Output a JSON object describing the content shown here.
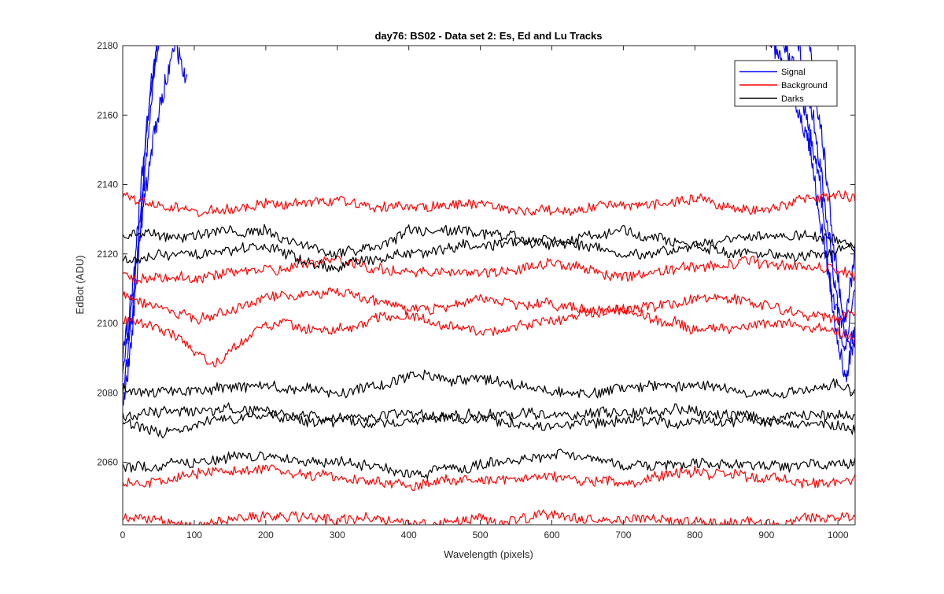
{
  "chart_data": {
    "type": "line",
    "title": "day76: BS02 - Data set 2: Es, Ed and Lu Tracks",
    "xlabel": "Wavelength (pixels)",
    "ylabel": "EdBot (ADU)",
    "xlim": [
      0,
      1024
    ],
    "ylim": [
      2042,
      2180
    ],
    "xticks": [
      0,
      100,
      200,
      300,
      400,
      500,
      600,
      700,
      800,
      900,
      1000
    ],
    "yticks": [
      2060,
      2080,
      2100,
      2120,
      2140,
      2160,
      2180
    ],
    "grid": false,
    "legend_position": "top-right",
    "legend": [
      {
        "label": "Signal",
        "color": "#0000ff"
      },
      {
        "label": "Background",
        "color": "#ff0000"
      },
      {
        "label": "Darks",
        "color": "#000000"
      }
    ],
    "series": [
      {
        "group": "Signal",
        "color": "#0000ff",
        "x": [
          0,
          10,
          20,
          30,
          40,
          50,
          60
        ],
        "y": [
          2087,
          2100,
          2125,
          2150,
          2170,
          2182,
          2185
        ]
      },
      {
        "group": "Signal",
        "color": "#0000ff",
        "x": [
          0,
          10,
          20,
          30,
          40,
          50
        ],
        "y": [
          2075,
          2090,
          2115,
          2140,
          2165,
          2185
        ]
      },
      {
        "group": "Signal",
        "color": "#0000ff",
        "x": [
          0,
          10,
          20,
          30,
          40,
          50
        ],
        "y": [
          2080,
          2095,
          2120,
          2145,
          2168,
          2184
        ]
      },
      {
        "group": "Signal",
        "color": "#0000ff",
        "x": [
          0,
          15,
          30,
          45,
          60,
          75,
          90
        ],
        "y": [
          2090,
          2110,
          2135,
          2155,
          2170,
          2180,
          2169
        ]
      },
      {
        "group": "Signal",
        "color": "#0000ff",
        "x": [
          900,
          930,
          960,
          990,
          1010,
          1024
        ],
        "y": [
          2185,
          2170,
          2150,
          2110,
          2092,
          2100
        ]
      },
      {
        "group": "Signal",
        "color": "#0000ff",
        "x": [
          920,
          950,
          975,
          995,
          1010,
          1024
        ],
        "y": [
          2185,
          2165,
          2140,
          2100,
          2085,
          2095
        ]
      },
      {
        "group": "Signal",
        "color": "#0000ff",
        "x": [
          940,
          965,
          985,
          1000,
          1012,
          1024
        ],
        "y": [
          2185,
          2160,
          2130,
          2105,
          2095,
          2110
        ]
      },
      {
        "group": "Signal",
        "color": "#0000ff",
        "x": [
          960,
          980,
          995,
          1008,
          1024
        ],
        "y": [
          2180,
          2150,
          2120,
          2100,
          2120
        ]
      },
      {
        "group": "Background",
        "color": "#ff0000",
        "x": [
          0,
          100,
          200,
          300,
          400,
          500,
          600,
          700,
          800,
          900,
          1000,
          1024
        ],
        "y": [
          2137,
          2131,
          2134,
          2135,
          2133,
          2134,
          2133,
          2134,
          2136,
          2133,
          2137,
          2136
        ]
      },
      {
        "group": "Background",
        "color": "#ff0000",
        "x": [
          0,
          100,
          200,
          300,
          400,
          500,
          600,
          700,
          800,
          900,
          1000,
          1024
        ],
        "y": [
          2114,
          2113,
          2115,
          2118,
          2115,
          2114,
          2116,
          2114,
          2116,
          2117,
          2116,
          2114
        ]
      },
      {
        "group": "Background",
        "color": "#ff0000",
        "x": [
          0,
          100,
          200,
          300,
          400,
          500,
          600,
          700,
          800,
          900,
          1000,
          1024
        ],
        "y": [
          2108,
          2101,
          2107,
          2108,
          2104,
          2106,
          2105,
          2104,
          2108,
          2106,
          2101,
          2103
        ]
      },
      {
        "group": "Background",
        "color": "#ff0000",
        "x": [
          0,
          60,
          130,
          200,
          300,
          400,
          500,
          600,
          700,
          800,
          900,
          1000,
          1024
        ],
        "y": [
          2101,
          2098,
          2088,
          2100,
          2098,
          2102,
          2097,
          2101,
          2104,
          2098,
          2099,
          2098,
          2096
        ]
      },
      {
        "group": "Background",
        "color": "#ff0000",
        "x": [
          0,
          100,
          200,
          300,
          400,
          500,
          600,
          700,
          800,
          900,
          1000,
          1024
        ],
        "y": [
          2054,
          2056,
          2058,
          2056,
          2054,
          2055,
          2056,
          2054,
          2057,
          2055,
          2054,
          2055
        ]
      },
      {
        "group": "Background",
        "color": "#ff0000",
        "x": [
          0,
          100,
          200,
          300,
          400,
          500,
          600,
          700,
          800,
          900,
          1000,
          1024
        ],
        "y": [
          2044,
          2042,
          2044,
          2043,
          2043,
          2043,
          2045,
          2043,
          2043,
          2043,
          2044,
          2044
        ]
      },
      {
        "group": "Darks",
        "color": "#000000",
        "x": [
          0,
          100,
          200,
          300,
          400,
          500,
          600,
          700,
          800,
          900,
          1000,
          1024
        ],
        "y": [
          2125,
          2126,
          2126,
          2120,
          2126,
          2126,
          2122,
          2127,
          2122,
          2125,
          2124,
          2123
        ]
      },
      {
        "group": "Darks",
        "color": "#000000",
        "x": [
          0,
          100,
          200,
          300,
          400,
          500,
          600,
          700,
          800,
          900,
          1000,
          1024
        ],
        "y": [
          2118,
          2120,
          2122,
          2116,
          2121,
          2122,
          2124,
          2120,
          2122,
          2119,
          2121,
          2121
        ]
      },
      {
        "group": "Darks",
        "color": "#000000",
        "x": [
          0,
          100,
          200,
          300,
          400,
          500,
          600,
          700,
          800,
          900,
          1000,
          1024
        ],
        "y": [
          2081,
          2080,
          2082,
          2079,
          2085,
          2083,
          2080,
          2081,
          2082,
          2080,
          2082,
          2080
        ]
      },
      {
        "group": "Darks",
        "color": "#000000",
        "x": [
          0,
          100,
          200,
          300,
          400,
          500,
          600,
          700,
          800,
          900,
          1000,
          1024
        ],
        "y": [
          2074,
          2075,
          2075,
          2073,
          2074,
          2074,
          2074,
          2074,
          2075,
          2073,
          2074,
          2074
        ]
      },
      {
        "group": "Darks",
        "color": "#000000",
        "x": [
          0,
          60,
          100,
          200,
          300,
          400,
          500,
          600,
          700,
          800,
          900,
          1000,
          1024
        ],
        "y": [
          2072,
          2068,
          2071,
          2073,
          2071,
          2072,
          2072,
          2070,
          2073,
          2071,
          2072,
          2071,
          2070
        ]
      },
      {
        "group": "Darks",
        "color": "#000000",
        "x": [
          0,
          100,
          200,
          300,
          400,
          500,
          600,
          700,
          800,
          900,
          1000,
          1024
        ],
        "y": [
          2058,
          2060,
          2062,
          2060,
          2057,
          2059,
          2062,
          2060,
          2059,
          2059,
          2060,
          2060
        ]
      }
    ]
  }
}
